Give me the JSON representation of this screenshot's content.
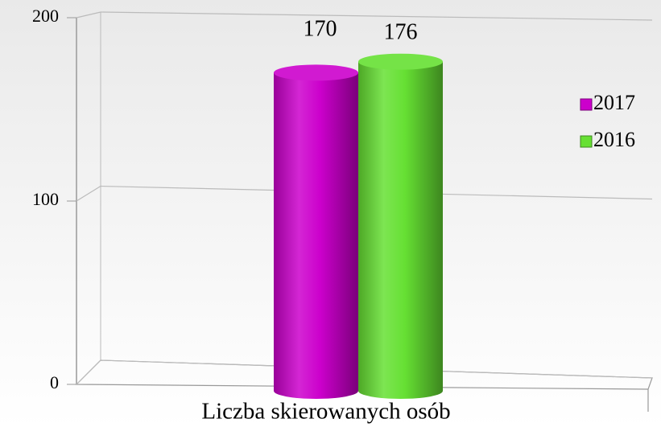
{
  "chart_data": {
    "type": "bar",
    "categories": [
      "Liczba skierowanych osób"
    ],
    "series": [
      {
        "name": "2017",
        "color": "#cc00cc",
        "values": [
          170
        ]
      },
      {
        "name": "2016",
        "color": "#66e033",
        "values": [
          176
        ]
      }
    ],
    "ylim": [
      0,
      200
    ],
    "yticks": [
      0,
      100,
      200
    ],
    "grid": true,
    "legend": "right"
  }
}
